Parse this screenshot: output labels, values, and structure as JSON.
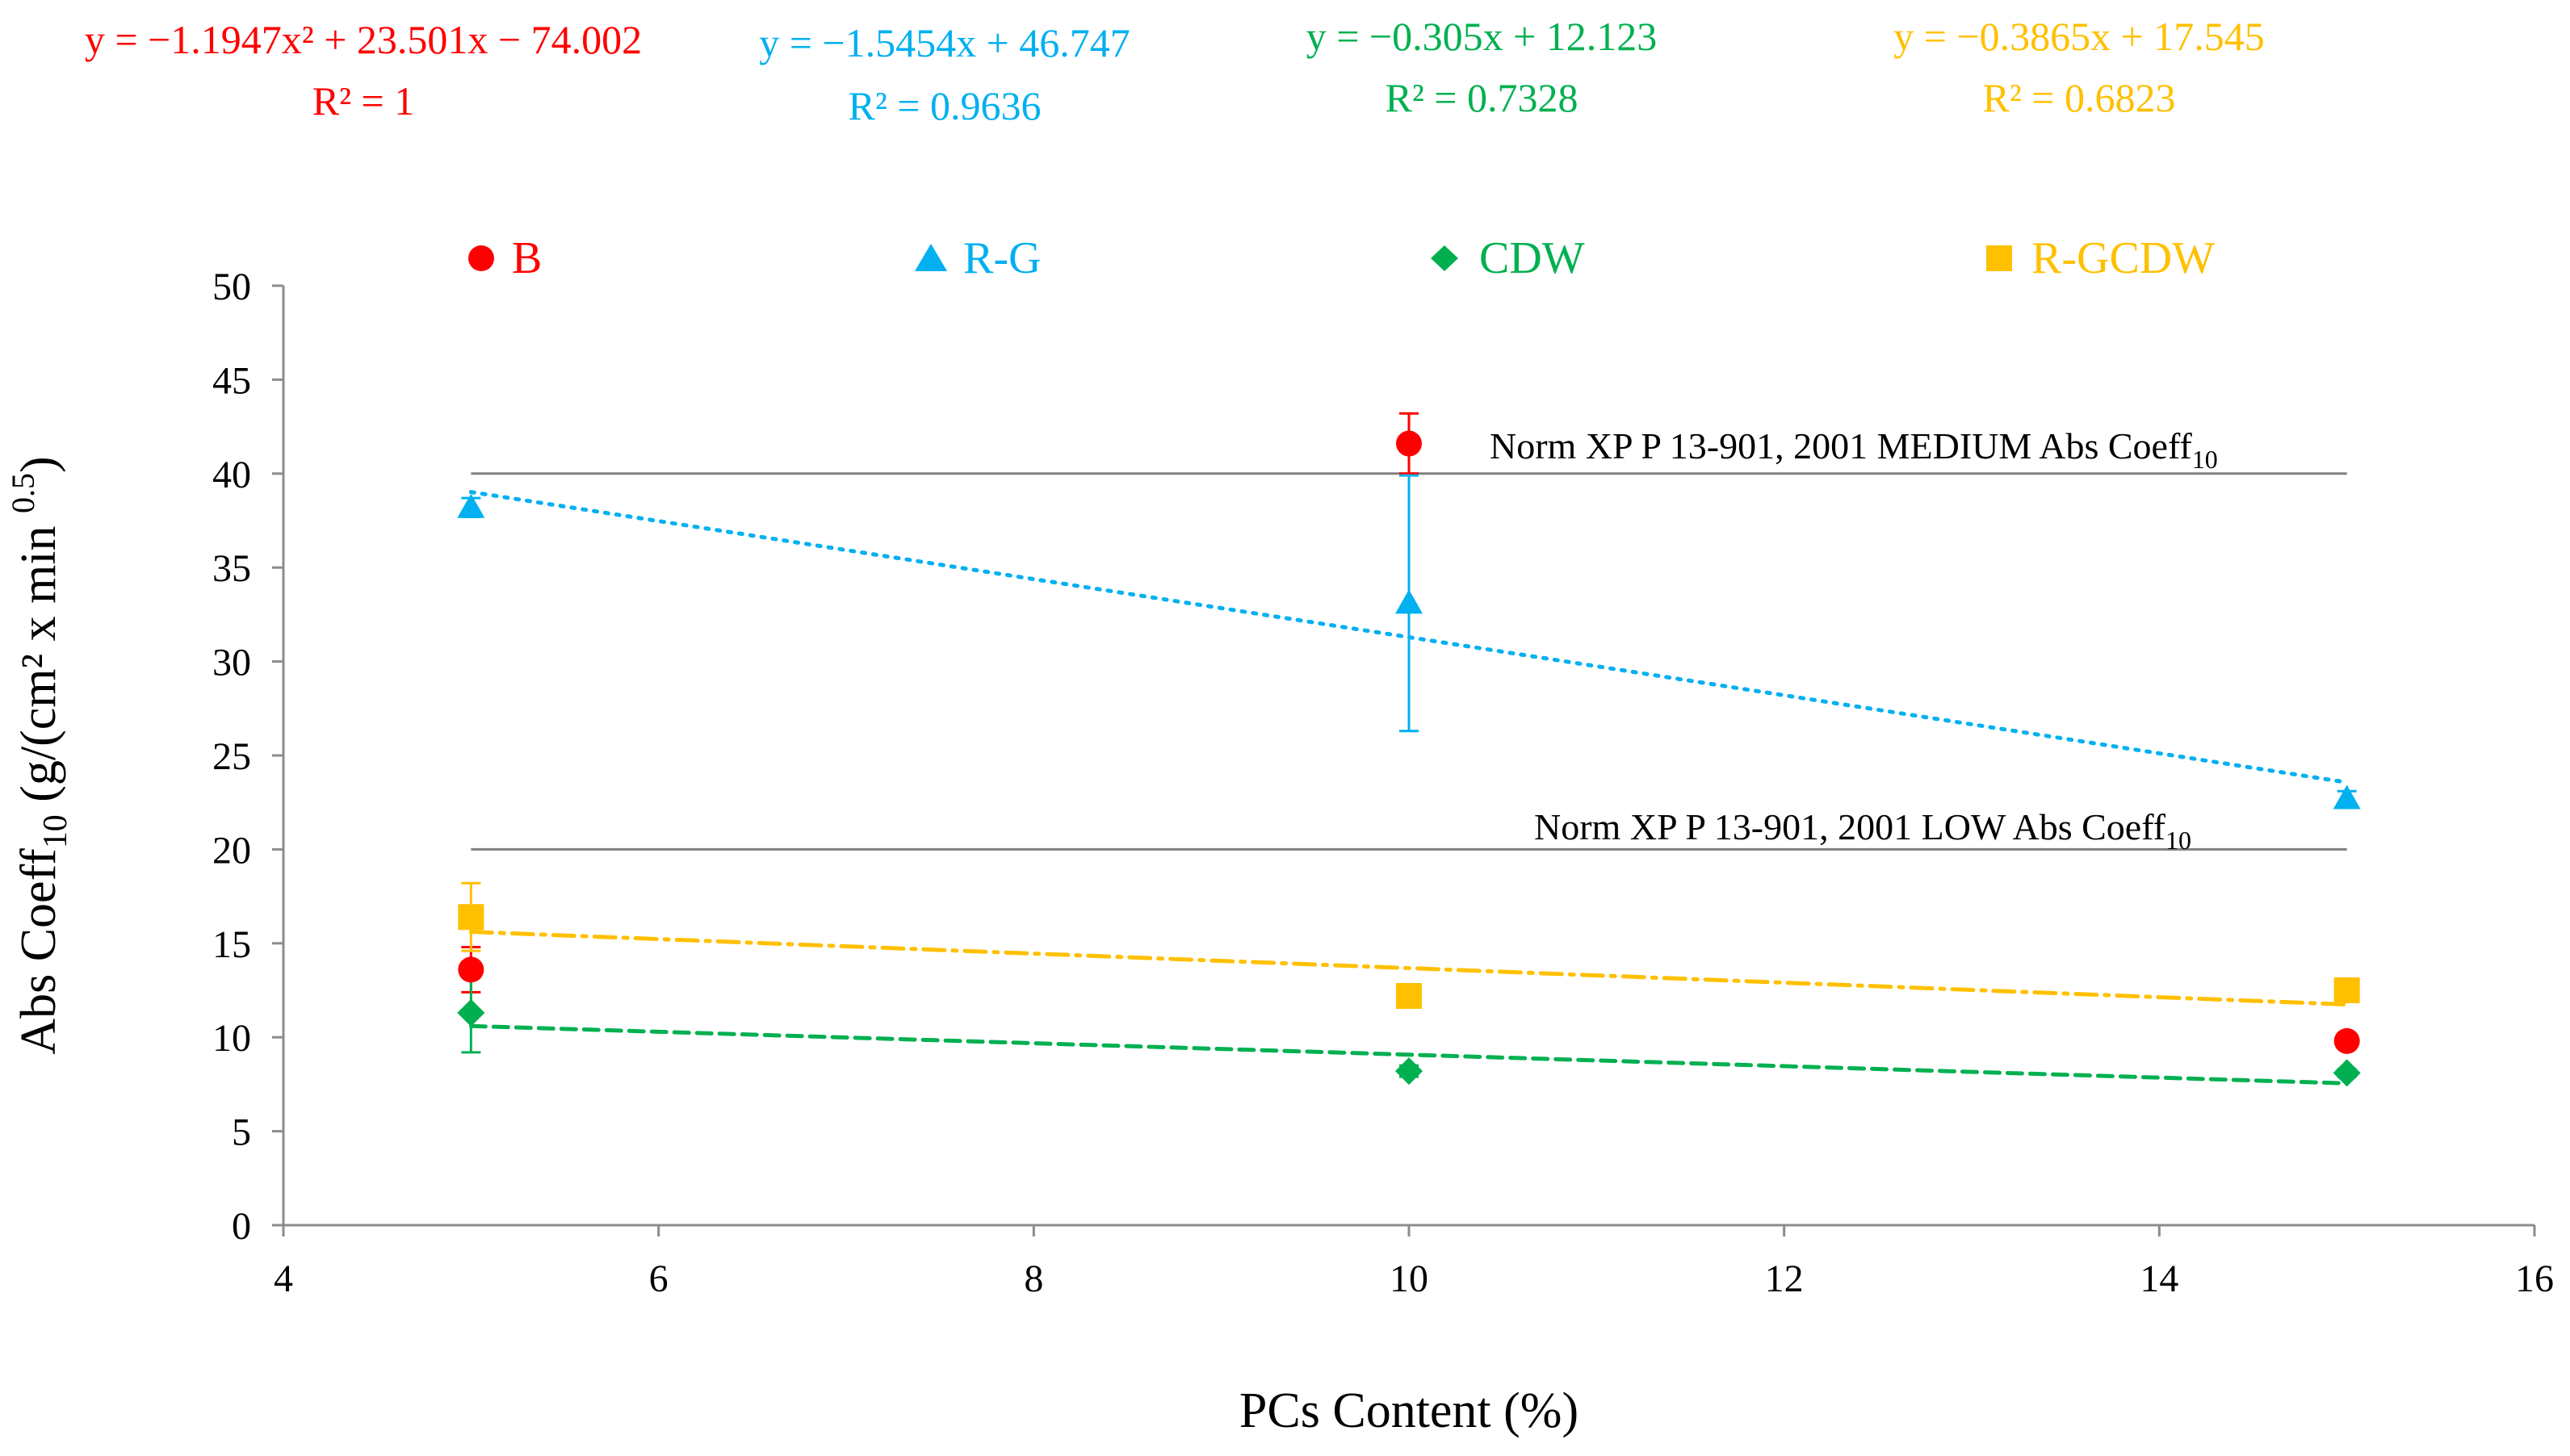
{
  "chart_data": {
    "type": "scatter",
    "xlabel": "PCs Content (%)",
    "ylabel": {
      "prefix": "Abs Coeff",
      "subscript": "10",
      "units_open": " (g/(cm² x min ",
      "units_sup": "0.5",
      "units_close": ")"
    },
    "xlim": [
      4,
      16
    ],
    "ylim": [
      0,
      50
    ],
    "x_ticks": [
      4,
      6,
      8,
      10,
      12,
      14,
      16
    ],
    "y_ticks": [
      0,
      5,
      10,
      15,
      20,
      25,
      30,
      35,
      40,
      45,
      50
    ],
    "grid": false,
    "legend_position": "top",
    "series": [
      {
        "name": "B",
        "marker": "circle",
        "color": "#ff0000",
        "x": [
          5,
          10,
          15
        ],
        "y": [
          13.6,
          41.6,
          9.8
        ],
        "err": [
          1.2,
          1.6,
          0
        ],
        "trend": {
          "equation": "y = −1.1947x² + 23.501x − 74.002",
          "r2": "R² = 1",
          "kind": "poly2",
          "coef": [
            -1.1947,
            23.501,
            -74.002
          ],
          "style": "none"
        }
      },
      {
        "name": "R-G",
        "marker": "triangle",
        "color": "#00b0f0",
        "x": [
          5,
          10,
          15
        ],
        "y": [
          38.2,
          33.1,
          22.7
        ],
        "err": [
          0.5,
          6.8,
          0.4
        ],
        "trend": {
          "equation": "y = −1.5454x + 46.747",
          "r2": "R² = 0.9636",
          "kind": "linear",
          "coef": [
            -1.5454,
            46.747
          ],
          "style": "dotted"
        }
      },
      {
        "name": "CDW",
        "marker": "diamond",
        "color": "#00b050",
        "x": [
          5,
          10,
          15
        ],
        "y": [
          11.3,
          8.2,
          8.1
        ],
        "err": [
          2.1,
          0.3,
          0.2
        ],
        "trend": {
          "equation": "y = −0.305x + 12.123",
          "r2": "R² = 0.7328",
          "kind": "linear",
          "coef": [
            -0.305,
            12.123
          ],
          "style": "dashed"
        }
      },
      {
        "name": "R-GCDW",
        "marker": "square",
        "color": "#ffc000",
        "x": [
          5,
          10,
          15
        ],
        "y": [
          16.4,
          12.2,
          12.5
        ],
        "err": [
          1.8,
          0.3,
          0.2
        ],
        "trend": {
          "equation": "y = −0.3865x + 17.545",
          "r2": "R² = 0.6823",
          "kind": "linear",
          "coef": [
            -0.3865,
            17.545
          ],
          "style": "dashdot"
        }
      }
    ],
    "reference_lines": [
      {
        "label": "Norm XP P 13-901, 2001 MEDIUM Abs Coeff",
        "subscript": "10",
        "y": 40,
        "x_range": [
          5,
          15
        ],
        "color": "#808080"
      },
      {
        "label": "Norm XP P 13-901, 2001 LOW Abs Coeff",
        "subscript": "10",
        "y": 20,
        "x_range": [
          5,
          15
        ],
        "color": "#808080"
      }
    ]
  }
}
